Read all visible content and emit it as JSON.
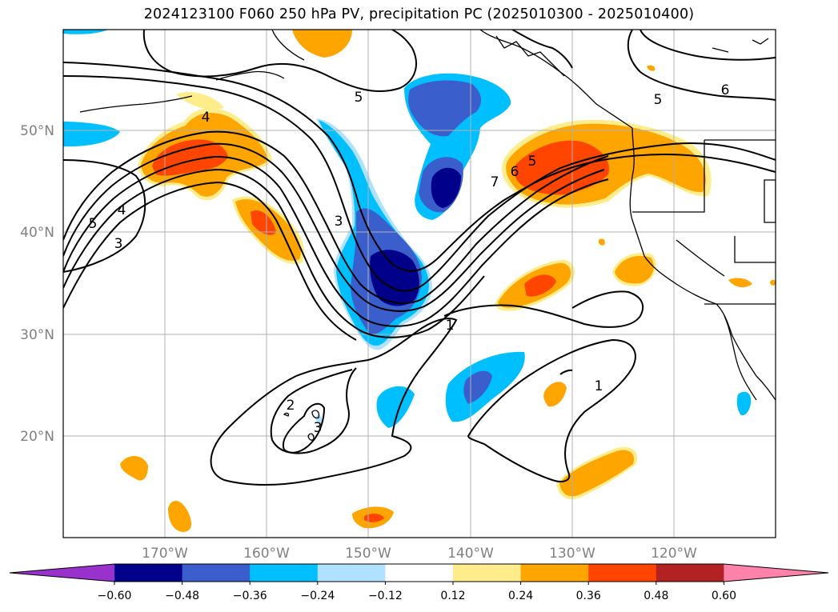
{
  "title": "2024123100 F060 250 hPa PV, precipitation PC (2025010300 - 2025010400)",
  "lat_labels": [
    "50°N",
    "40°N",
    "30°N",
    "20°N"
  ],
  "lon_labels": [
    "170°W",
    "160°W",
    "150°W",
    "140°W",
    "130°W",
    "120°W"
  ],
  "contour_labels": [
    "5",
    "6",
    "5",
    "4",
    "5",
    "4",
    "3",
    "3",
    "7",
    "6",
    "5",
    "1",
    "2",
    "3",
    "1"
  ],
  "colorbar": {
    "ticks": [
      "−0.60",
      "−0.48",
      "−0.36",
      "−0.24",
      "−0.12",
      "0.12",
      "0.24",
      "0.36",
      "0.48",
      "0.60"
    ],
    "colors": [
      "#9932cc",
      "#00008b",
      "#3a5fcd",
      "#00bfff",
      "#b0e2ff",
      "#ffffff",
      "#ffec8b",
      "#ffa500",
      "#ff4500",
      "#b22222",
      "#ff82ab"
    ]
  },
  "palette": {
    "neg_dark": "#00008b",
    "neg_mid": "#3a5fcd",
    "neg_light": "#00bfff",
    "neg_pale": "#b0e2ff",
    "pos_pale": "#ffec8b",
    "pos_light": "#ffa500",
    "pos_mid": "#ff4500",
    "pos_dark": "#b22222",
    "grid": "#b0b0b0",
    "contour": "#000000"
  }
}
